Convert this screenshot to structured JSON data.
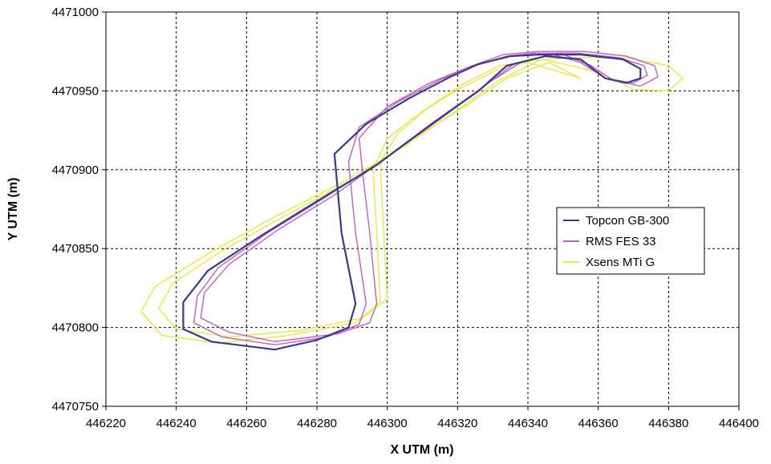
{
  "chart_data": {
    "type": "line",
    "title": "",
    "xlabel": "X UTM (m)",
    "ylabel": "Y UTM (m)",
    "xlim": [
      446220,
      446400
    ],
    "ylim": [
      4470750,
      4471000
    ],
    "x_ticks": [
      446220,
      446240,
      446260,
      446280,
      446300,
      446320,
      446340,
      446360,
      446380,
      446400
    ],
    "y_ticks": [
      4470750,
      4470800,
      4470850,
      4470900,
      4470950,
      4471000
    ],
    "x_tick_labels": [
      "446220",
      "446240",
      "446260",
      "446280",
      "446300",
      "446320",
      "446340",
      "446360",
      "446380",
      "446400"
    ],
    "y_tick_labels": [
      "4470750",
      "4470800",
      "4470850",
      "4470900",
      "4470950",
      "4471000"
    ],
    "grid": true,
    "legend_position": "right",
    "series": [
      {
        "name": "Topcon GB-300",
        "color": "#3a3a8c",
        "laps": [
          [
            [
              446355,
              4470970
            ],
            [
              446362,
              4470958
            ],
            [
              446368,
              4470955
            ],
            [
              446372,
              4470958
            ],
            [
              446372,
              4470964
            ],
            [
              446367,
              4470970
            ],
            [
              446355,
              4470973
            ],
            [
              446343,
              4470973
            ],
            [
              446335,
              4470972
            ],
            [
              446326,
              4470967
            ],
            [
              446318,
              4470959
            ],
            [
              446306,
              4470945
            ],
            [
              446294,
              4470929
            ],
            [
              446285,
              4470910
            ],
            [
              446287,
              4470860
            ],
            [
              446291,
              4470815
            ],
            [
              446289,
              4470800
            ],
            [
              446280,
              4470792
            ],
            [
              446268,
              4470786
            ],
            [
              446250,
              4470791
            ],
            [
              446242,
              4470799
            ],
            [
              446242,
              4470816
            ],
            [
              446249,
              4470836
            ],
            [
              446264,
              4470858
            ],
            [
              446280,
              4470880
            ],
            [
              446297,
              4470903
            ],
            [
              446312,
              4470928
            ],
            [
              446326,
              4470950
            ],
            [
              446334,
              4470966
            ],
            [
              446345,
              4470972
            ],
            [
              446355,
              4470970
            ]
          ]
        ]
      },
      {
        "name": "RMS FES 33",
        "color": "#c060c0",
        "laps": [
          [
            [
              446355,
              4470968
            ],
            [
              446362,
              4470958
            ],
            [
              446370,
              4470955
            ],
            [
              446374,
              4470960
            ],
            [
              446373,
              4470966
            ],
            [
              446366,
              4470971
            ],
            [
              446354,
              4470974
            ],
            [
              446342,
              4470974
            ],
            [
              446334,
              4470972
            ],
            [
              446325,
              4470966
            ],
            [
              446315,
              4470957
            ],
            [
              446303,
              4470943
            ],
            [
              446292,
              4470927
            ],
            [
              446289,
              4470905
            ],
            [
              446291,
              4470860
            ],
            [
              446294,
              4470815
            ],
            [
              446292,
              4470802
            ],
            [
              446283,
              4470794
            ],
            [
              446268,
              4470789
            ],
            [
              446253,
              4470794
            ],
            [
              446245,
              4470803
            ],
            [
              446246,
              4470820
            ],
            [
              446252,
              4470838
            ],
            [
              446266,
              4470860
            ],
            [
              446282,
              4470882
            ],
            [
              446298,
              4470905
            ],
            [
              446313,
              4470930
            ],
            [
              446327,
              4470952
            ],
            [
              446336,
              4470967
            ],
            [
              446347,
              4470973
            ],
            [
              446355,
              4470968
            ]
          ],
          [
            [
              446358,
              4470966
            ],
            [
              446364,
              4470957
            ],
            [
              446372,
              4470953
            ],
            [
              446377,
              4470959
            ],
            [
              446376,
              4470966
            ],
            [
              446368,
              4470972
            ],
            [
              446356,
              4470975
            ],
            [
              446343,
              4470975
            ],
            [
              446333,
              4470973
            ],
            [
              446323,
              4470965
            ],
            [
              446312,
              4470955
            ],
            [
              446300,
              4470940
            ],
            [
              446292,
              4470920
            ],
            [
              446293,
              4470898
            ],
            [
              446295,
              4470860
            ],
            [
              446297,
              4470815
            ],
            [
              446295,
              4470803
            ],
            [
              446286,
              4470796
            ],
            [
              446268,
              4470791
            ],
            [
              446255,
              4470797
            ],
            [
              446247,
              4470806
            ],
            [
              446248,
              4470822
            ],
            [
              446255,
              4470840
            ],
            [
              446269,
              4470862
            ],
            [
              446285,
              4470884
            ],
            [
              446300,
              4470908
            ],
            [
              446315,
              4470932
            ],
            [
              446328,
              4470954
            ],
            [
              446338,
              4470968
            ],
            [
              446349,
              4470974
            ],
            [
              446358,
              4470966
            ]
          ]
        ]
      },
      {
        "name": "Xsens MTi G",
        "color": "#e8e84a",
        "laps": [
          [
            [
              446360,
              4470962
            ],
            [
              446370,
              4470951
            ],
            [
              446380,
              4470950
            ],
            [
              446384,
              4470958
            ],
            [
              446380,
              4470966
            ],
            [
              446368,
              4470971
            ],
            [
              446353,
              4470971
            ],
            [
              446340,
              4470969
            ],
            [
              446331,
              4470963
            ],
            [
              446321,
              4470952
            ],
            [
              446310,
              4470937
            ],
            [
              446300,
              4470920
            ],
            [
              446296,
              4470900
            ],
            [
              446297,
              4470860
            ],
            [
              446298,
              4470816
            ],
            [
              446291,
              4470803
            ],
            [
              446272,
              4470795
            ],
            [
              446252,
              4470790
            ],
            [
              446236,
              4470795
            ],
            [
              446230,
              4470810
            ],
            [
              446234,
              4470826
            ],
            [
              446250,
              4470848
            ],
            [
              446268,
              4470870
            ],
            [
              446288,
              4470893
            ],
            [
              446305,
              4470915
            ],
            [
              446320,
              4470938
            ],
            [
              446332,
              4470957
            ],
            [
              446344,
              4470970
            ],
            [
              446360,
              4470962
            ]
          ],
          [
            [
              446355,
              4470958
            ],
            [
              446340,
              4470968
            ],
            [
              446332,
              4470966
            ],
            [
              446322,
              4470955
            ],
            [
              446312,
              4470940
            ],
            [
              446303,
              4470923
            ],
            [
              446298,
              4470905
            ],
            [
              446299,
              4470860
            ],
            [
              446300,
              4470818
            ],
            [
              446293,
              4470806
            ],
            [
              446275,
              4470798
            ],
            [
              446255,
              4470794
            ],
            [
              446240,
              4470799
            ],
            [
              446235,
              4470812
            ],
            [
              446239,
              4470828
            ],
            [
              446254,
              4470850
            ],
            [
              446272,
              4470872
            ],
            [
              446291,
              4470895
            ],
            [
              446306,
              4470918
            ],
            [
              446322,
              4470940
            ],
            [
              446334,
              4470958
            ],
            [
              446346,
              4470968
            ],
            [
              446355,
              4470958
            ]
          ]
        ]
      }
    ]
  }
}
